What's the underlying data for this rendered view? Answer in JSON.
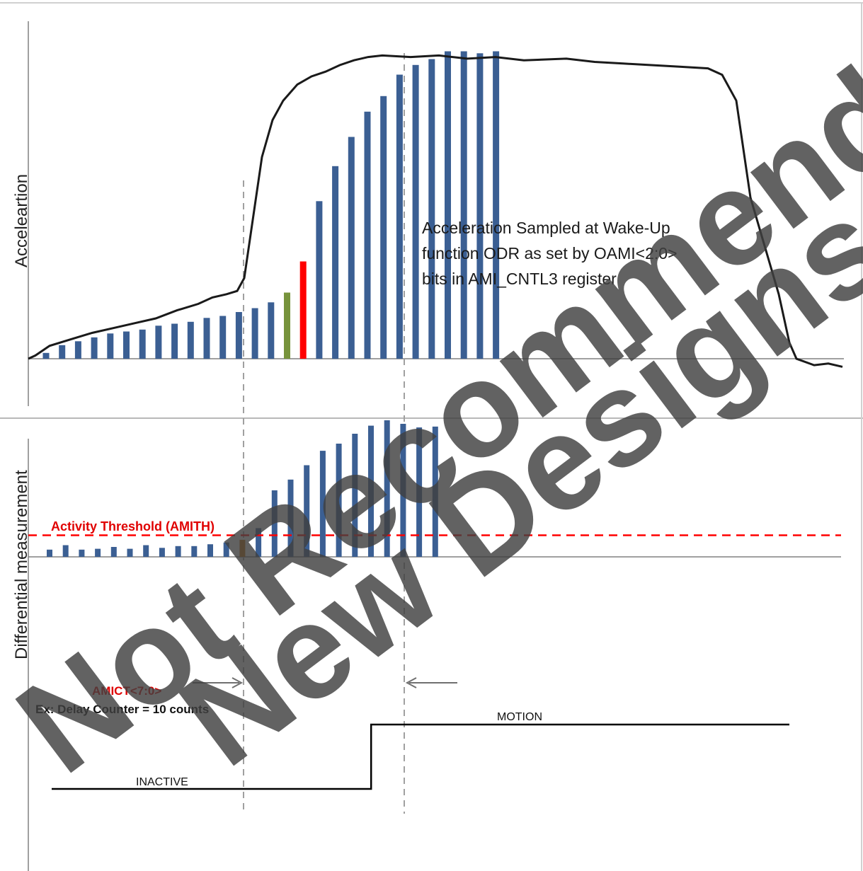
{
  "top_panel": {
    "y_axis_label": "Acceleartion",
    "annotation_lines": [
      "Acceleration Sampled at Wake-Up",
      "function ODR as set by OAMI<2:0>",
      "bits in AMI_CNTL3 register"
    ]
  },
  "bottom_panel": {
    "y_axis_label": "Differential measurement",
    "threshold_label": "Activity Threshold (AMITH)",
    "counter_label": "AMICT<7:0>",
    "counter_example": "Ex: Delay Counter = 10 counts",
    "state_inactive": "INACTIVE",
    "state_motion": "MOTION"
  },
  "watermark": {
    "line1": "Not Recommended for",
    "line2": "New Designs"
  },
  "colors": {
    "bar": "#3b5f93",
    "bar_green": "#77933c",
    "bar_red": "#ff0000",
    "bar_orange": "#c0700a",
    "threshold": "#ff0000",
    "curve": "#1a1a1a",
    "watermark": "#404040"
  },
  "chart_data": [
    {
      "type": "bar",
      "panel": "acceleration",
      "values": [
        3,
        7,
        9,
        11,
        13,
        14,
        15,
        17,
        18,
        19,
        21,
        22,
        24,
        26,
        29,
        34,
        50,
        81,
        99,
        114,
        127,
        135,
        146,
        151,
        154,
        158,
        158,
        157,
        158
      ],
      "highlight": {
        "15": "green",
        "16": "red"
      },
      "curve": [
        [
          0,
          0
        ],
        [
          10,
          2
        ],
        [
          30,
          8
        ],
        [
          60,
          12
        ],
        [
          90,
          16
        ],
        [
          120,
          19
        ],
        [
          150,
          22
        ],
        [
          180,
          25
        ],
        [
          210,
          30
        ],
        [
          240,
          34
        ],
        [
          260,
          38
        ],
        [
          280,
          40
        ],
        [
          295,
          42
        ],
        [
          305,
          50
        ],
        [
          320,
          95
        ],
        [
          330,
          125
        ],
        [
          345,
          148
        ],
        [
          360,
          160
        ],
        [
          380,
          170
        ],
        [
          400,
          175
        ],
        [
          420,
          178
        ],
        [
          440,
          182
        ],
        [
          460,
          185
        ],
        [
          480,
          187
        ],
        [
          500,
          188
        ],
        [
          540,
          187
        ],
        [
          580,
          188
        ],
        [
          620,
          186
        ],
        [
          660,
          187
        ],
        [
          700,
          185
        ],
        [
          760,
          186
        ],
        [
          800,
          184
        ],
        [
          840,
          183
        ],
        [
          880,
          182
        ],
        [
          920,
          181
        ],
        [
          960,
          180
        ],
        [
          980,
          176
        ],
        [
          1000,
          160
        ],
        [
          1010,
          130
        ],
        [
          1020,
          100
        ],
        [
          1040,
          70
        ],
        [
          1060,
          40
        ],
        [
          1075,
          10
        ],
        [
          1085,
          0
        ],
        [
          1110,
          -4
        ],
        [
          1130,
          -3
        ],
        [
          1150,
          -5
        ]
      ]
    },
    {
      "type": "bar",
      "panel": "differential",
      "values": [
        8,
        13,
        8,
        9,
        11,
        9,
        13,
        10,
        12,
        12,
        14,
        16,
        19,
        32,
        74,
        86,
        102,
        118,
        126,
        137,
        146,
        152,
        148,
        144,
        145
      ],
      "highlight": {
        "12": "orange"
      },
      "threshold": 24
    },
    {
      "type": "line",
      "panel": "state",
      "series": [
        {
          "points": [
            [
              0,
              0
            ],
            [
              0.433,
              0
            ],
            [
              0.433,
              1
            ],
            [
              1,
              1
            ]
          ]
        }
      ]
    }
  ]
}
